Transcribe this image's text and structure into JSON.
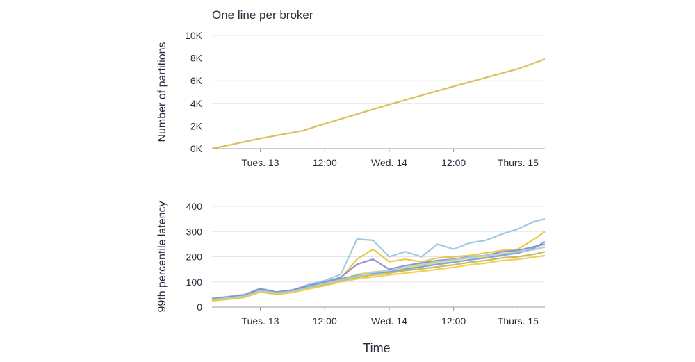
{
  "subtitle": "One line per broker",
  "xlabel": "Time",
  "colors": {
    "text": "#2a2a3c",
    "grid": "#e4e4ea",
    "axis": "#9a9aa6",
    "partitions_line": "#d9b74a",
    "broker_series": [
      "#93c3e0",
      "#e8c437",
      "#8a86c6",
      "#f0d060",
      "#6f9fd8",
      "#c9b24a",
      "#a6d0e8",
      "#f2cc45"
    ]
  },
  "chart_data": [
    {
      "type": "line",
      "title": "One line per broker",
      "xlabel": "",
      "ylabel": "Number of partitions",
      "x_ticks": [
        "Tues. 13",
        "12:00",
        "Wed. 14",
        "12:00",
        "Thurs. 15"
      ],
      "y_ticks": [
        "0K",
        "2K",
        "4K",
        "6K",
        "8K",
        "10K"
      ],
      "x_unit": "hours since Tues. 00:00",
      "xlim": [
        15,
        77
      ],
      "ylim": [
        0,
        10000
      ],
      "grid": true,
      "series": [
        {
          "x": [
            15,
            24,
            32,
            36,
            48,
            60,
            72,
            77
          ],
          "y": [
            0,
            900,
            1600,
            2200,
            3900,
            5500,
            7050,
            7900
          ]
        }
      ]
    },
    {
      "type": "line",
      "title": "",
      "xlabel": "Time",
      "ylabel": "99th percentile latency",
      "x_ticks": [
        "Tues. 13",
        "12:00",
        "Wed. 14",
        "12:00",
        "Thurs. 15"
      ],
      "y_ticks": [
        "0",
        "100",
        "200",
        "300",
        "400"
      ],
      "x_unit": "hours since Tues. 00:00",
      "xlim": [
        15,
        77
      ],
      "ylim": [
        0,
        400
      ],
      "grid": true,
      "x": [
        15,
        18,
        21,
        24,
        27,
        30,
        33,
        36,
        39,
        42,
        45,
        48,
        51,
        54,
        57,
        60,
        63,
        66,
        69,
        72,
        75,
        77
      ],
      "series": [
        {
          "y": [
            35,
            42,
            50,
            75,
            60,
            68,
            90,
            105,
            130,
            270,
            265,
            200,
            220,
            200,
            250,
            230,
            255,
            265,
            290,
            310,
            340,
            350
          ]
        },
        {
          "y": [
            30,
            38,
            45,
            70,
            58,
            66,
            82,
            95,
            115,
            190,
            230,
            180,
            190,
            180,
            195,
            200,
            205,
            215,
            225,
            230,
            270,
            300
          ]
        },
        {
          "y": [
            32,
            40,
            47,
            72,
            60,
            68,
            85,
            100,
            118,
            170,
            190,
            150,
            165,
            175,
            185,
            190,
            200,
            205,
            220,
            225,
            240,
            250
          ]
        },
        {
          "y": [
            28,
            35,
            42,
            65,
            55,
            63,
            78,
            92,
            110,
            130,
            140,
            145,
            155,
            165,
            175,
            185,
            195,
            200,
            210,
            215,
            230,
            240
          ]
        },
        {
          "y": [
            30,
            37,
            44,
            68,
            57,
            64,
            80,
            96,
            112,
            125,
            135,
            140,
            150,
            160,
            170,
            178,
            188,
            195,
            205,
            215,
            235,
            260
          ]
        },
        {
          "y": [
            26,
            33,
            40,
            62,
            52,
            60,
            75,
            88,
            104,
            118,
            128,
            135,
            145,
            152,
            160,
            168,
            178,
            185,
            195,
            200,
            210,
            220
          ]
        },
        {
          "y": [
            29,
            36,
            43,
            66,
            56,
            62,
            79,
            94,
            108,
            122,
            138,
            145,
            160,
            170,
            180,
            188,
            198,
            205,
            212,
            220,
            228,
            238
          ]
        },
        {
          "y": [
            24,
            31,
            38,
            60,
            50,
            58,
            72,
            85,
            100,
            112,
            120,
            128,
            135,
            142,
            150,
            158,
            168,
            175,
            185,
            190,
            198,
            205
          ]
        }
      ]
    }
  ]
}
